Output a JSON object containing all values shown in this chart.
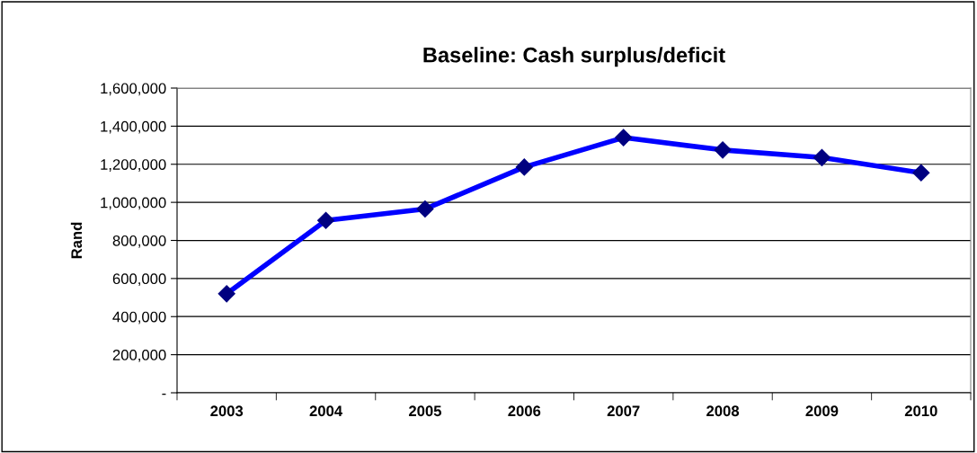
{
  "chart_data": {
    "type": "line",
    "title": "Baseline: Cash surplus/deficit",
    "ylabel": "Rand",
    "categories": [
      "2003",
      "2004",
      "2005",
      "2006",
      "2007",
      "2008",
      "2009",
      "2010"
    ],
    "series": [
      {
        "color": "#0000ff",
        "colors": [
          "#000080",
          "#000080",
          "#000080",
          "#000080",
          "#000080",
          "#000080",
          "#000080",
          "#000080"
        ],
        "values": [
          520000,
          905000,
          965000,
          1185000,
          1340000,
          1275000,
          1235000,
          1155000
        ]
      }
    ],
    "ylim": [
      0,
      1600000
    ],
    "yticks": [
      {
        "value": 0,
        "label": "-"
      },
      {
        "value": 200000,
        "label": "200,000"
      },
      {
        "value": 400000,
        "label": "400,000"
      },
      {
        "value": 600000,
        "label": "600,000"
      },
      {
        "value": 800000,
        "label": "800,000"
      },
      {
        "value": 1000000,
        "label": "1,000,000"
      },
      {
        "value": 1200000,
        "label": "1,200,000"
      },
      {
        "value": 1400000,
        "label": "1,400,000"
      },
      {
        "value": 1600000,
        "label": "1,600,000"
      }
    ],
    "grid": "y",
    "marker": "diamond",
    "line_style": "solid",
    "legend": false
  }
}
